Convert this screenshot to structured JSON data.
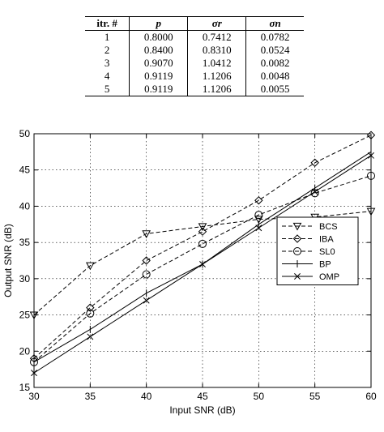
{
  "table": {
    "headers": [
      "itr. #",
      "p",
      "σr",
      "σn"
    ],
    "rows": [
      [
        "1",
        "0.8000",
        "0.7412",
        "0.0782"
      ],
      [
        "2",
        "0.8400",
        "0.8310",
        "0.0524"
      ],
      [
        "3",
        "0.9070",
        "1.0412",
        "0.0082"
      ],
      [
        "4",
        "0.9119",
        "1.1206",
        "0.0048"
      ],
      [
        "5",
        "0.9119",
        "1.1206",
        "0.0055"
      ]
    ]
  },
  "chart_data": {
    "type": "line",
    "title": "",
    "xlabel": "Input SNR (dB)",
    "ylabel": "Output SNR (dB)",
    "xlim": [
      30,
      60
    ],
    "ylim": [
      15,
      50
    ],
    "xticks": [
      30,
      35,
      40,
      45,
      50,
      55,
      60
    ],
    "yticks": [
      15,
      20,
      25,
      30,
      35,
      40,
      45,
      50
    ],
    "grid": true,
    "legend_position": "right",
    "x": [
      30,
      35,
      40,
      45,
      50,
      55,
      60
    ],
    "series": [
      {
        "name": "BCS",
        "marker": "triangle-down",
        "dash": "dashed",
        "values": [
          25.0,
          31.8,
          36.2,
          37.2,
          38.2,
          38.5,
          39.3
        ]
      },
      {
        "name": "IBA",
        "marker": "diamond",
        "dash": "dashed",
        "values": [
          19.0,
          26.0,
          32.5,
          36.5,
          40.8,
          46.0,
          49.8
        ]
      },
      {
        "name": "SL0",
        "marker": "circle",
        "dash": "dashed",
        "values": [
          18.5,
          25.2,
          30.6,
          34.8,
          38.8,
          41.8,
          44.2
        ]
      },
      {
        "name": "BP",
        "marker": "plus",
        "dash": "solid",
        "values": [
          18.5,
          23.0,
          28.0,
          32.0,
          37.5,
          42.5,
          47.5
        ]
      },
      {
        "name": "OMP",
        "marker": "x",
        "dash": "solid",
        "values": [
          17.0,
          22.0,
          27.0,
          32.0,
          37.0,
          42.0,
          47.0
        ]
      }
    ]
  }
}
